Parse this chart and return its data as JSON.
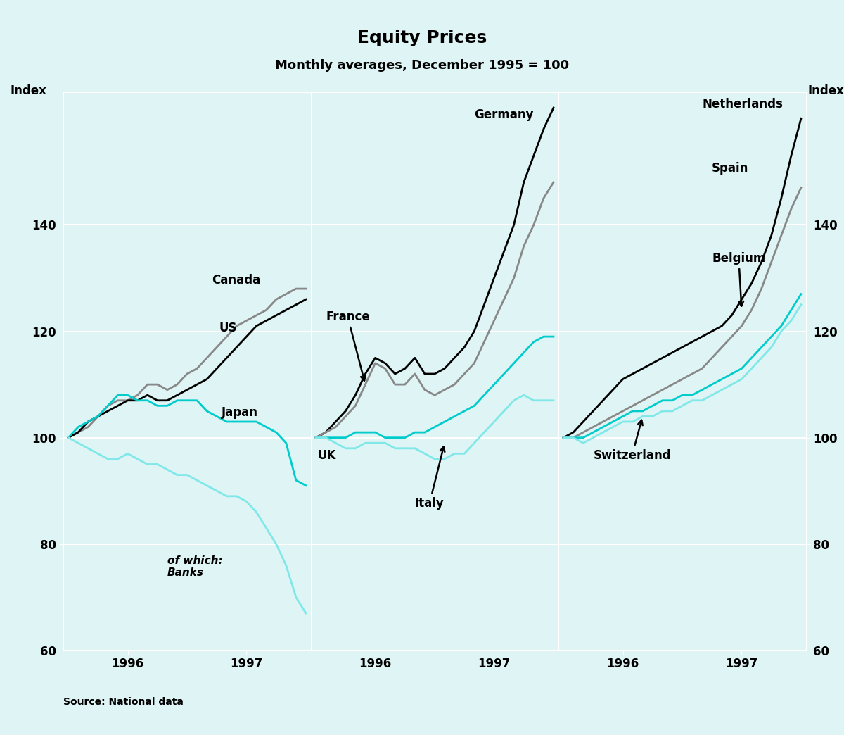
{
  "title": "Equity Prices",
  "subtitle": "Monthly averages, December 1995 = 100",
  "ylabel": "Index",
  "source": "Source: National data",
  "background_color": "#dff4f4",
  "ylim": [
    60,
    165
  ],
  "yticks": [
    60,
    80,
    100,
    120,
    140
  ],
  "n_points": 25,
  "panel1": {
    "US": [
      100,
      101,
      103,
      104,
      105,
      106,
      107,
      107,
      108,
      107,
      107,
      108,
      109,
      110,
      111,
      113,
      115,
      117,
      119,
      121,
      122,
      123,
      124,
      125,
      126
    ],
    "Canada": [
      100,
      101,
      102,
      104,
      106,
      107,
      107,
      108,
      110,
      110,
      109,
      110,
      112,
      113,
      115,
      117,
      119,
      121,
      122,
      123,
      124,
      126,
      127,
      128,
      128
    ],
    "Japan": [
      100,
      102,
      103,
      104,
      106,
      108,
      108,
      107,
      107,
      106,
      106,
      107,
      107,
      107,
      105,
      104,
      103,
      103,
      103,
      103,
      102,
      101,
      99,
      92,
      91
    ],
    "Banks": [
      100,
      99,
      98,
      97,
      96,
      96,
      97,
      96,
      95,
      95,
      94,
      93,
      93,
      92,
      91,
      90,
      89,
      89,
      88,
      86,
      83,
      80,
      76,
      70,
      67
    ]
  },
  "panel2": {
    "Germany": [
      100,
      101,
      103,
      105,
      108,
      112,
      115,
      114,
      112,
      113,
      115,
      112,
      112,
      113,
      115,
      117,
      120,
      125,
      130,
      135,
      140,
      148,
      153,
      158,
      162
    ],
    "France": [
      100,
      101,
      102,
      104,
      106,
      110,
      114,
      113,
      110,
      110,
      112,
      109,
      108,
      109,
      110,
      112,
      114,
      118,
      122,
      126,
      130,
      136,
      140,
      145,
      148
    ],
    "UK": [
      100,
      100,
      100,
      100,
      101,
      101,
      101,
      100,
      100,
      100,
      101,
      101,
      102,
      103,
      104,
      105,
      106,
      108,
      110,
      112,
      114,
      116,
      118,
      119,
      119
    ],
    "Italy": [
      100,
      100,
      99,
      98,
      98,
      99,
      99,
      99,
      98,
      98,
      98,
      97,
      96,
      96,
      97,
      97,
      99,
      101,
      103,
      105,
      107,
      108,
      107,
      107,
      107
    ]
  },
  "panel3": {
    "Netherlands": [
      100,
      101,
      103,
      105,
      107,
      109,
      111,
      112,
      113,
      114,
      115,
      116,
      117,
      118,
      119,
      120,
      121,
      123,
      126,
      129,
      133,
      138,
      145,
      153,
      160
    ],
    "Spain": [
      100,
      100,
      101,
      102,
      103,
      104,
      105,
      106,
      107,
      108,
      109,
      110,
      111,
      112,
      113,
      115,
      117,
      119,
      121,
      124,
      128,
      133,
      138,
      143,
      147
    ],
    "Belgium": [
      100,
      100,
      100,
      101,
      102,
      103,
      104,
      105,
      105,
      106,
      107,
      107,
      108,
      108,
      109,
      110,
      111,
      112,
      113,
      115,
      117,
      119,
      121,
      124,
      127
    ],
    "Switzerland": [
      100,
      100,
      99,
      100,
      101,
      102,
      103,
      103,
      104,
      104,
      105,
      105,
      106,
      107,
      107,
      108,
      109,
      110,
      111,
      113,
      115,
      117,
      120,
      122,
      125
    ]
  },
  "colors": {
    "black": "#000000",
    "gray": "#888888",
    "cyan": "#00cccc",
    "light_cyan": "#80e8e8"
  },
  "xtick_positions": [
    6,
    18
  ],
  "xtick_labels": [
    "1996",
    "1997"
  ]
}
